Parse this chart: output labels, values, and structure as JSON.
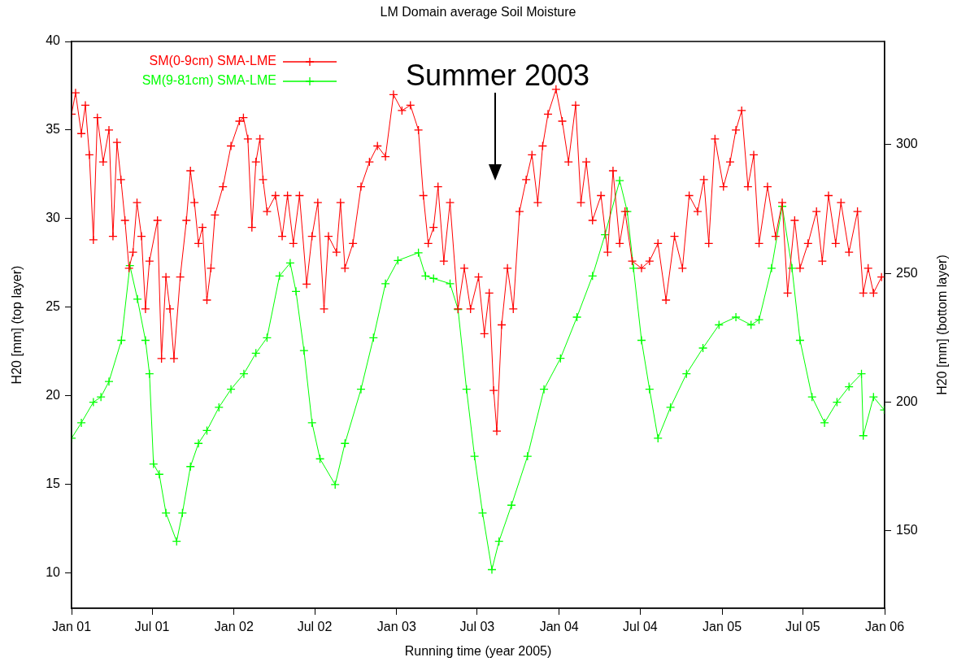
{
  "chart_data": {
    "type": "line",
    "title": "LM Domain average Soil Moisture",
    "xlabel": "Running time (year 2005)",
    "ylabel": "H20 [mm] (top layer)",
    "y2label": "H20 [mm] (bottom layer)",
    "xlim": [
      "2001-01-01",
      "2006-01-01"
    ],
    "xticks": [
      {
        "value": "2001-01-01",
        "label": "Jan 01"
      },
      {
        "value": "2001-07-01",
        "label": "Jul 01"
      },
      {
        "value": "2002-01-01",
        "label": "Jan 02"
      },
      {
        "value": "2002-07-01",
        "label": "Jul 02"
      },
      {
        "value": "2003-01-01",
        "label": "Jan 03"
      },
      {
        "value": "2003-07-01",
        "label": "Jul 03"
      },
      {
        "value": "2004-01-01",
        "label": "Jan 04"
      },
      {
        "value": "2004-07-01",
        "label": "Jul 04"
      },
      {
        "value": "2005-01-01",
        "label": "Jan 05"
      },
      {
        "value": "2005-07-01",
        "label": "Jul 05"
      },
      {
        "value": "2006-01-01",
        "label": "Jan 06"
      }
    ],
    "ylim": [
      8,
      40
    ],
    "yticks": [
      10,
      15,
      20,
      25,
      30,
      35,
      40
    ],
    "y2lim": [
      120,
      340
    ],
    "y2ticks": [
      150,
      200,
      250,
      300
    ],
    "grid": false,
    "legend": "top left",
    "line_style": "solid",
    "annotations": [
      "Summer 2003"
    ],
    "series": [
      {
        "name": "SM(0-9cm) SMA-LME",
        "color": "#ff0000",
        "marker": "cross",
        "x": [
          "2001-01-01",
          "2001-01-10",
          "2001-01-23",
          "2001-02-01",
          "2001-02-10",
          "2001-02-19",
          "2001-02-28",
          "2001-03-13",
          "2001-03-26",
          "2001-04-04",
          "2001-04-13",
          "2001-04-22",
          "2001-05-01",
          "2001-05-10",
          "2001-05-19",
          "2001-05-28",
          "2001-06-07",
          "2001-06-16",
          "2001-06-25",
          "2001-07-13",
          "2001-07-22",
          "2001-08-01",
          "2001-08-10",
          "2001-08-19",
          "2001-09-02",
          "2001-09-16",
          "2001-09-25",
          "2001-10-04",
          "2001-10-13",
          "2001-10-22",
          "2001-11-01",
          "2001-11-10",
          "2001-11-19",
          "2001-12-07",
          "2001-12-25",
          "2002-01-13",
          "2002-01-22",
          "2002-02-01",
          "2002-02-10",
          "2002-02-19",
          "2002-02-28",
          "2002-03-07",
          "2002-03-16",
          "2002-04-04",
          "2002-04-19",
          "2002-05-01",
          "2002-05-14",
          "2002-05-28",
          "2002-06-13",
          "2002-06-25",
          "2002-07-08",
          "2002-07-22",
          "2002-08-01",
          "2002-08-19",
          "2002-08-28",
          "2002-09-07",
          "2002-09-25",
          "2002-10-13",
          "2002-11-01",
          "2002-11-19",
          "2002-12-07",
          "2002-12-25",
          "2003-01-13",
          "2003-02-01",
          "2003-02-19",
          "2003-03-02",
          "2003-03-13",
          "2003-03-25",
          "2003-04-04",
          "2003-04-17",
          "2003-05-01",
          "2003-05-19",
          "2003-06-02",
          "2003-06-16",
          "2003-07-04",
          "2003-07-17",
          "2003-07-28",
          "2003-08-07",
          "2003-08-14",
          "2003-08-25",
          "2003-09-07",
          "2003-09-20",
          "2003-10-04",
          "2003-10-19",
          "2003-11-01",
          "2003-11-14",
          "2003-11-25",
          "2003-12-07",
          "2003-12-25",
          "2004-01-08",
          "2004-01-22",
          "2004-02-07",
          "2004-02-19",
          "2004-03-02",
          "2004-03-16",
          "2004-04-04",
          "2004-04-19",
          "2004-05-01",
          "2004-05-16",
          "2004-05-28",
          "2004-06-13",
          "2004-07-04",
          "2004-07-22",
          "2004-08-10",
          "2004-08-28",
          "2004-09-16",
          "2004-10-04",
          "2004-10-19",
          "2004-11-07",
          "2004-11-21",
          "2004-12-02",
          "2004-12-16",
          "2005-01-04",
          "2005-01-19",
          "2005-02-01",
          "2005-02-14",
          "2005-02-28",
          "2005-03-13",
          "2005-03-25",
          "2005-04-13",
          "2005-05-01",
          "2005-05-16",
          "2005-05-28",
          "2005-06-13",
          "2005-06-25",
          "2005-07-13",
          "2005-08-01",
          "2005-08-14",
          "2005-08-28",
          "2005-09-13",
          "2005-09-25",
          "2005-10-13",
          "2005-11-01",
          "2005-11-14",
          "2005-11-25",
          "2005-12-07",
          "2005-12-25"
        ],
        "values": [
          35.9,
          37.1,
          34.8,
          36.4,
          33.6,
          28.8,
          35.7,
          33.2,
          35,
          29,
          34.3,
          32.2,
          29.9,
          27.2,
          28.1,
          30.9,
          29,
          24.9,
          27.6,
          29.9,
          22.1,
          26.7,
          24.9,
          22.1,
          26.7,
          29.9,
          32.7,
          30.9,
          28.6,
          29.5,
          25.4,
          27.2,
          30.2,
          31.8,
          34.1,
          35.5,
          35.7,
          34.5,
          29.5,
          33.2,
          34.5,
          32.2,
          30.4,
          31.3,
          29,
          31.3,
          28.6,
          31.3,
          26.3,
          29,
          30.9,
          24.9,
          29,
          28.1,
          30.9,
          27.2,
          28.6,
          31.8,
          33.2,
          34.1,
          33.5,
          37,
          36.1,
          36.4,
          35,
          31.3,
          28.6,
          29.5,
          31.8,
          27.6,
          30.9,
          24.9,
          27.2,
          24.9,
          26.7,
          23.5,
          25.8,
          20.3,
          18,
          24,
          27.2,
          24.9,
          30.4,
          32.2,
          33.6,
          30.9,
          34.1,
          35.9,
          37.3,
          35.5,
          33.2,
          36.4,
          30.9,
          33.2,
          29.9,
          31.3,
          28.1,
          32.7,
          28.6,
          30.4,
          27.6,
          27.2,
          27.6,
          28.6,
          25.4,
          29,
          27.2,
          31.3,
          30.4,
          32.2,
          28.6,
          34.5,
          31.8,
          33.2,
          35,
          36.1,
          31.8,
          33.6,
          28.6,
          31.8,
          29,
          30.9,
          25.8,
          29.9,
          27.2,
          28.6,
          30.4,
          27.6,
          31.3,
          28.6,
          30.9,
          28.1,
          30.4,
          25.8,
          27.2,
          25.8,
          26.7
        ]
      },
      {
        "name": "SM(9-81cm) SMA-LME",
        "color": "#00ff00",
        "marker": "cross",
        "axis": "y2",
        "x": [
          "2001-01-01",
          "2001-01-23",
          "2001-02-19",
          "2001-03-08",
          "2001-03-26",
          "2001-04-23",
          "2001-05-12",
          "2001-05-29",
          "2001-06-16",
          "2001-06-25",
          "2001-07-04",
          "2001-07-17",
          "2001-08-01",
          "2001-08-25",
          "2001-09-07",
          "2001-09-25",
          "2001-10-13",
          "2001-11-01",
          "2001-11-28",
          "2001-12-25",
          "2002-01-23",
          "2002-02-19",
          "2002-03-16",
          "2002-04-13",
          "2002-05-07",
          "2002-05-20",
          "2002-06-07",
          "2002-06-25",
          "2002-07-13",
          "2002-08-16",
          "2002-09-07",
          "2002-10-13",
          "2002-11-10",
          "2002-12-07",
          "2003-01-04",
          "2003-02-19",
          "2003-03-07",
          "2003-03-25",
          "2003-05-01",
          "2003-05-19",
          "2003-06-07",
          "2003-06-25",
          "2003-07-13",
          "2003-08-03",
          "2003-08-19",
          "2003-09-16",
          "2003-10-22",
          "2003-11-28",
          "2004-01-04",
          "2004-02-10",
          "2004-03-16",
          "2004-04-13",
          "2004-05-16",
          "2004-06-02",
          "2004-06-16",
          "2004-07-04",
          "2004-07-22",
          "2004-08-10",
          "2004-09-07",
          "2004-10-13",
          "2004-11-19",
          "2004-12-25",
          "2005-02-01",
          "2005-03-07",
          "2005-03-25",
          "2005-04-22",
          "2005-05-16",
          "2005-06-07",
          "2005-06-25",
          "2005-07-22",
          "2005-08-19",
          "2005-09-16",
          "2005-10-13",
          "2005-11-10",
          "2005-11-14",
          "2005-12-07",
          "2005-12-31"
        ],
        "values": [
          186,
          192,
          200,
          202,
          208,
          224,
          253,
          240,
          224,
          211,
          176,
          172,
          157,
          146,
          157,
          175,
          184,
          189,
          198,
          205,
          211,
          219,
          225,
          249,
          254,
          243,
          220,
          192,
          178,
          168,
          184,
          205,
          225,
          246,
          255,
          258,
          249,
          248,
          246,
          236,
          205,
          179,
          157,
          135,
          146,
          160,
          179,
          205,
          217,
          233,
          249,
          265,
          286,
          274,
          252,
          224,
          205,
          186,
          198,
          211,
          221,
          230,
          233,
          230,
          232,
          252,
          276,
          252,
          224,
          202,
          192,
          200,
          206,
          211,
          187,
          202,
          197
        ]
      }
    ]
  }
}
